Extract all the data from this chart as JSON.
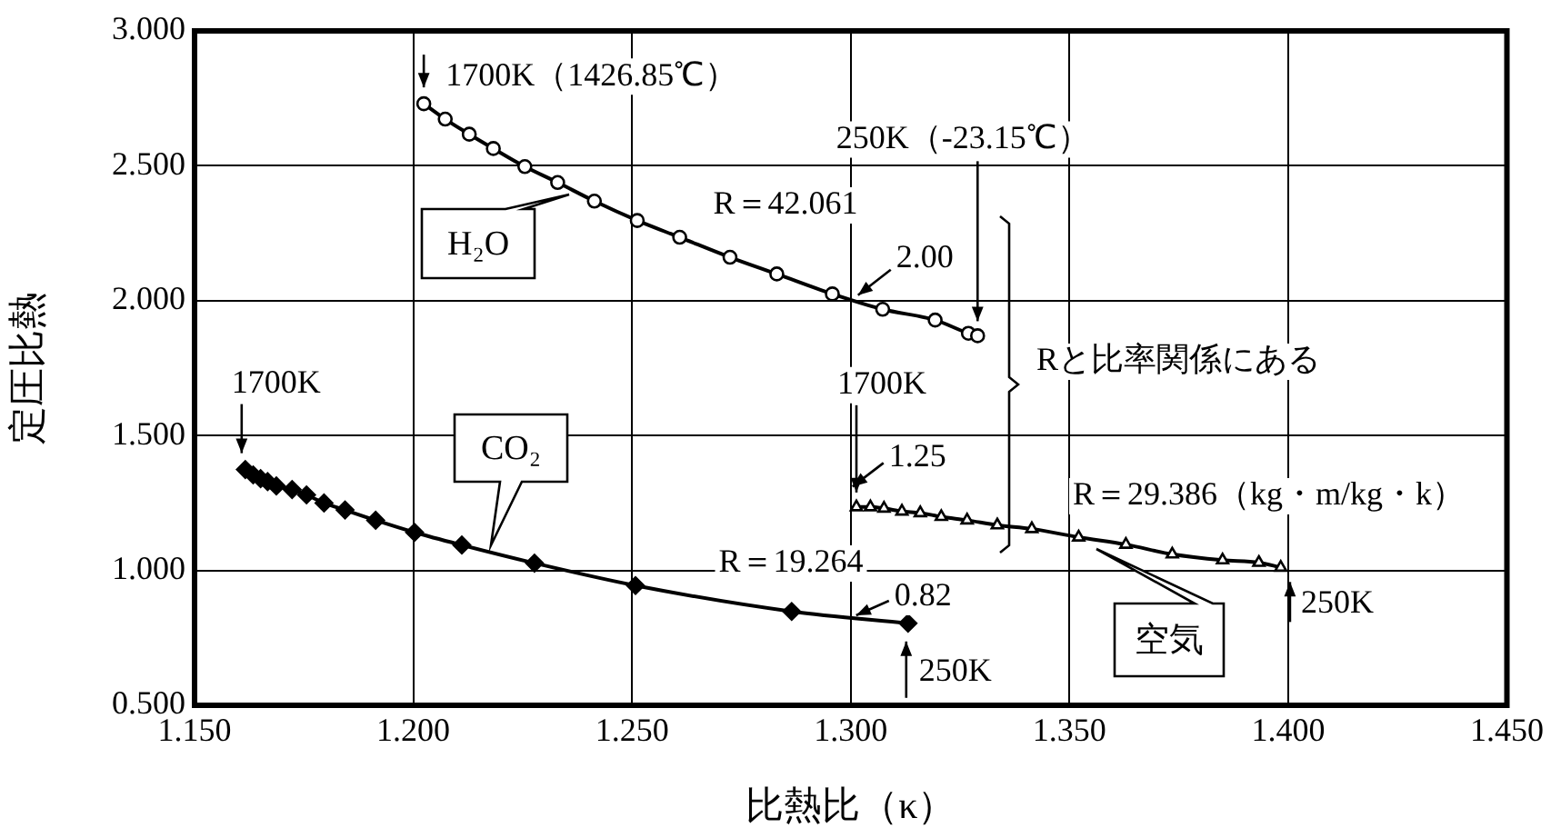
{
  "chart_data": {
    "type": "line",
    "xlabel": "比熱比（κ）",
    "ylabel": "定圧比熱",
    "xlim": [
      1.15,
      1.45
    ],
    "xticks": [
      {
        "value": 1.15,
        "label": "1.150"
      },
      {
        "value": 1.2,
        "label": "1.200"
      },
      {
        "value": 1.25,
        "label": "1.250"
      },
      {
        "value": 1.3,
        "label": "1.300"
      },
      {
        "value": 1.35,
        "label": "1.350"
      },
      {
        "value": 1.4,
        "label": "1.400"
      },
      {
        "value": 1.45,
        "label": "1.450"
      }
    ],
    "ylim": [
      0.5,
      3
    ],
    "yticks": [
      {
        "value": 0.5,
        "label": "0.500"
      },
      {
        "value": 1,
        "label": "1.000"
      },
      {
        "value": 1.5,
        "label": "1.500"
      },
      {
        "value": 2,
        "label": "2.000"
      },
      {
        "value": 2.5,
        "label": "2.500"
      },
      {
        "value": 3,
        "label": "3.000"
      }
    ],
    "grid": true,
    "legend": false,
    "series": [
      {
        "name": "H₂O",
        "color": "#000000",
        "marker": "circle",
        "x": [
          1.2024,
          1.2073,
          1.2128,
          1.2183,
          1.2255,
          1.233,
          1.2414,
          1.2512,
          1.2609,
          1.2724,
          1.2831,
          1.2958,
          1.3073,
          1.3193,
          1.3269,
          1.329
        ],
        "values": [
          2.73,
          2.673,
          2.617,
          2.564,
          2.497,
          2.438,
          2.369,
          2.297,
          2.235,
          2.161,
          2.099,
          2.025,
          1.968,
          1.928,
          1.879,
          1.87
        ]
      },
      {
        "name": "CO₂",
        "color": "#000000",
        "marker": "diamond",
        "x": [
          1.1616,
          1.1634,
          1.1651,
          1.1667,
          1.1687,
          1.1723,
          1.1756,
          1.1796,
          1.1844,
          1.1914,
          1.2003,
          1.2111,
          1.2277,
          1.2508,
          1.2865,
          1.3131
        ],
        "values": [
          1.374,
          1.354,
          1.34,
          1.329,
          1.313,
          1.3,
          1.28,
          1.25,
          1.224,
          1.186,
          1.141,
          1.094,
          1.027,
          0.944,
          0.848,
          0.804
        ]
      },
      {
        "name": "空気",
        "color": "#000000",
        "marker": "triangle",
        "x": [
          1.3013,
          1.3045,
          1.3076,
          1.3117,
          1.3159,
          1.3207,
          1.3266,
          1.3335,
          1.3414,
          1.3521,
          1.3629,
          1.3735,
          1.385,
          1.3933,
          1.3983
        ],
        "values": [
          1.235,
          1.235,
          1.23,
          1.219,
          1.213,
          1.199,
          1.186,
          1.168,
          1.154,
          1.123,
          1.096,
          1.06,
          1.038,
          1.029,
          1.011
        ]
      }
    ],
    "annotations": [
      {
        "text": "1700K（1426.85℃）",
        "x": 1.2024,
        "y": 2.73
      },
      {
        "text": "250K（-23.15℃）",
        "x": 1.329,
        "y": 1.87
      },
      "R＝42.061",
      {
        "text": "2.00",
        "x": 1.3,
        "y": 2.0
      },
      "Rと比率関係にある",
      {
        "text": "1700K",
        "x": 1.1616,
        "y": 1.374
      },
      {
        "text": "1700K",
        "x": 1.3013,
        "y": 1.235
      },
      {
        "text": "1.25",
        "x": 1.3,
        "y": 1.25
      },
      "R＝29.386（kg・m/kg・k）",
      "R＝19.264",
      {
        "text": "0.82",
        "x": 1.3,
        "y": 0.82
      },
      {
        "text": "250K",
        "x": 1.3131,
        "y": 0.804
      },
      {
        "text": "250K",
        "x": 1.4,
        "y": 1.011
      }
    ]
  }
}
